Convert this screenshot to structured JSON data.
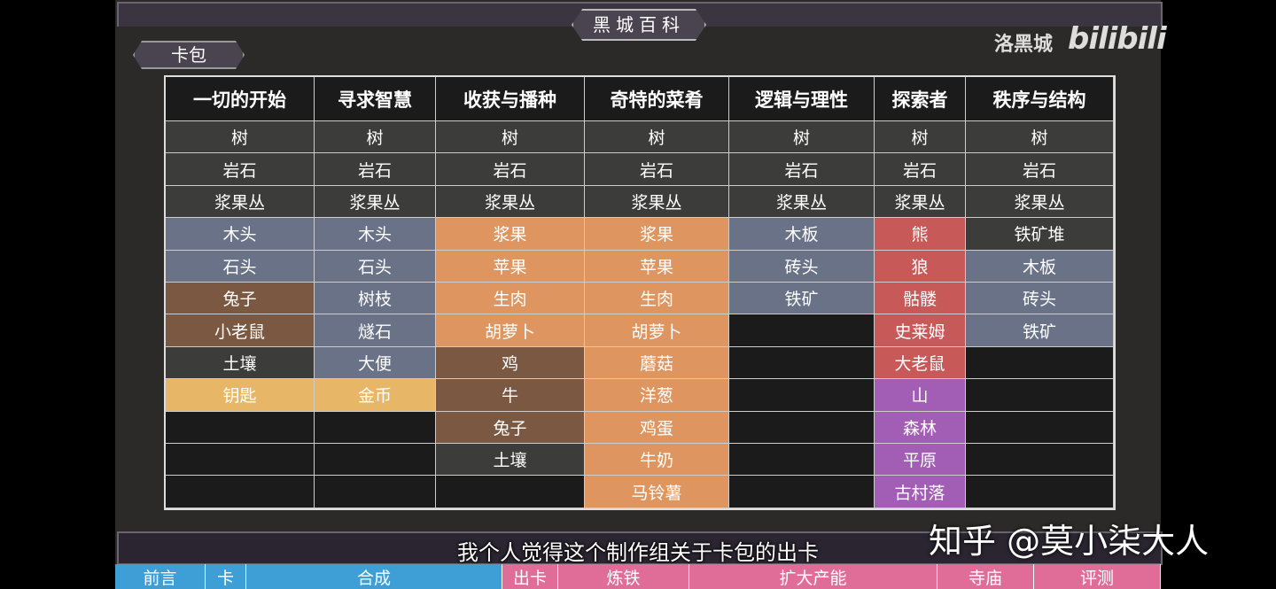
{
  "header": {
    "title": "黑城百科",
    "tab": "卡包",
    "channel": "洛黑城",
    "logo": "bilibili"
  },
  "table": {
    "columns": [
      {
        "header": "一切的开始",
        "cells": [
          {
            "text": "树",
            "color": "#3c3c3a"
          },
          {
            "text": "岩石",
            "color": "#3c3c3a"
          },
          {
            "text": "浆果丛",
            "color": "#3c3c3a"
          },
          {
            "text": "木头",
            "color": "#6a7287"
          },
          {
            "text": "石头",
            "color": "#6a7287"
          },
          {
            "text": "兔子",
            "color": "#7b5842"
          },
          {
            "text": "小老鼠",
            "color": "#7b5842"
          },
          {
            "text": "土壤",
            "color": "#3c3c3a"
          },
          {
            "text": "钥匙",
            "color": "#e8b667"
          }
        ]
      },
      {
        "header": "寻求智慧",
        "cells": [
          {
            "text": "树",
            "color": "#3c3c3a"
          },
          {
            "text": "岩石",
            "color": "#3c3c3a"
          },
          {
            "text": "浆果丛",
            "color": "#3c3c3a"
          },
          {
            "text": "木头",
            "color": "#6a7287"
          },
          {
            "text": "石头",
            "color": "#6a7287"
          },
          {
            "text": "树枝",
            "color": "#6a7287"
          },
          {
            "text": "燧石",
            "color": "#6a7287"
          },
          {
            "text": "大便",
            "color": "#6a7287"
          },
          {
            "text": "金币",
            "color": "#e8b667"
          }
        ]
      },
      {
        "header": "收获与播种",
        "cells": [
          {
            "text": "树",
            "color": "#3c3c3a"
          },
          {
            "text": "岩石",
            "color": "#3c3c3a"
          },
          {
            "text": "浆果丛",
            "color": "#3c3c3a"
          },
          {
            "text": "浆果",
            "color": "#de9560"
          },
          {
            "text": "苹果",
            "color": "#de9560"
          },
          {
            "text": "生肉",
            "color": "#de9560"
          },
          {
            "text": "胡萝卜",
            "color": "#de9560"
          },
          {
            "text": "鸡",
            "color": "#7b5842"
          },
          {
            "text": "牛",
            "color": "#7b5842"
          },
          {
            "text": "兔子",
            "color": "#7b5842"
          },
          {
            "text": "土壤",
            "color": "#3c3c3a"
          }
        ]
      },
      {
        "header": "奇特的菜肴",
        "cells": [
          {
            "text": "树",
            "color": "#3c3c3a"
          },
          {
            "text": "岩石",
            "color": "#3c3c3a"
          },
          {
            "text": "浆果丛",
            "color": "#3c3c3a"
          },
          {
            "text": "浆果",
            "color": "#de9560"
          },
          {
            "text": "苹果",
            "color": "#de9560"
          },
          {
            "text": "生肉",
            "color": "#de9560"
          },
          {
            "text": "胡萝卜",
            "color": "#de9560"
          },
          {
            "text": "蘑菇",
            "color": "#de9560"
          },
          {
            "text": "洋葱",
            "color": "#de9560"
          },
          {
            "text": "鸡蛋",
            "color": "#de9560"
          },
          {
            "text": "牛奶",
            "color": "#de9560"
          },
          {
            "text": "马铃薯",
            "color": "#de9560"
          }
        ]
      },
      {
        "header": "逻辑与理性",
        "cells": [
          {
            "text": "树",
            "color": "#3c3c3a"
          },
          {
            "text": "岩石",
            "color": "#3c3c3a"
          },
          {
            "text": "浆果丛",
            "color": "#3c3c3a"
          },
          {
            "text": "木板",
            "color": "#6a7287"
          },
          {
            "text": "砖头",
            "color": "#6a7287"
          },
          {
            "text": "铁矿",
            "color": "#6a7287"
          }
        ]
      },
      {
        "header": "探索者",
        "cells": [
          {
            "text": "树",
            "color": "#3c3c3a"
          },
          {
            "text": "岩石",
            "color": "#3c3c3a"
          },
          {
            "text": "浆果丛",
            "color": "#3c3c3a"
          },
          {
            "text": "熊",
            "color": "#c75a59"
          },
          {
            "text": "狼",
            "color": "#c75a59"
          },
          {
            "text": "骷髅",
            "color": "#c75a59"
          },
          {
            "text": "史莱姆",
            "color": "#c75a59"
          },
          {
            "text": "大老鼠",
            "color": "#c75a59"
          },
          {
            "text": "山",
            "color": "#a25db5"
          },
          {
            "text": "森林",
            "color": "#a25db5"
          },
          {
            "text": "平原",
            "color": "#a25db5"
          },
          {
            "text": "古村落",
            "color": "#a25db5"
          }
        ]
      },
      {
        "header": "秩序与结构",
        "cells": [
          {
            "text": "树",
            "color": "#3c3c3a"
          },
          {
            "text": "岩石",
            "color": "#3c3c3a"
          },
          {
            "text": "浆果丛",
            "color": "#3c3c3a"
          },
          {
            "text": "铁矿堆",
            "color": "#3c3c3a"
          },
          {
            "text": "木板",
            "color": "#6a7287"
          },
          {
            "text": "砖头",
            "color": "#6a7287"
          },
          {
            "text": "铁矿",
            "color": "#6a7287"
          }
        ]
      }
    ]
  },
  "subtitle": "我个人觉得这个制作组关于卡包的出卡",
  "watermark": "知乎 @莫小柒大人",
  "nav": [
    {
      "label": "前言",
      "color": "#3d9fd6"
    },
    {
      "label": "卡",
      "color": "#3d9fd6"
    },
    {
      "label": "合成",
      "color": "#3d9fd6"
    },
    {
      "label": "出卡",
      "color": "#e06d98"
    },
    {
      "label": "炼铁",
      "color": "#e06d98"
    },
    {
      "label": "扩大产能",
      "color": "#e06d98"
    },
    {
      "label": "寺庙",
      "color": "#e06d98"
    },
    {
      "label": "评测",
      "color": "#e06d98"
    }
  ]
}
